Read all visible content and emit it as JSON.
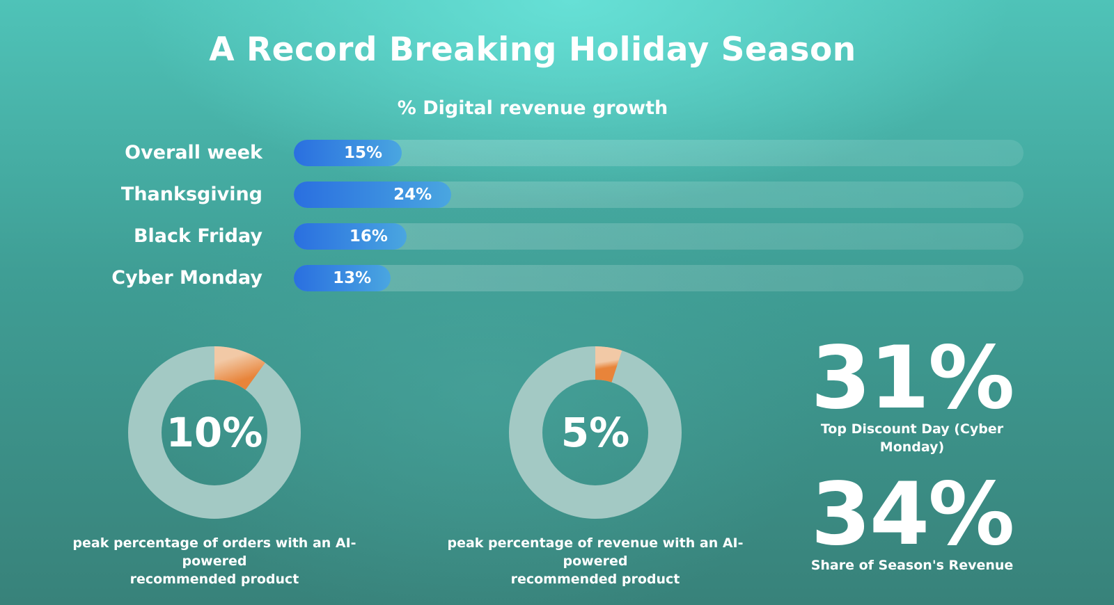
{
  "title": "A Record Breaking Holiday Season",
  "colors": {
    "bar_fill": "#2a6fe0",
    "donut_track": "#a3c9c4",
    "donut_highlight": "#e8843a",
    "text": "#ffffff"
  },
  "chart_data": [
    {
      "type": "bar",
      "orientation": "horizontal",
      "title": "% Digital revenue growth",
      "categories": [
        "Overall week",
        "Thanksgiving",
        "Black Friday",
        "Cyber Monday"
      ],
      "values": [
        15,
        24,
        16,
        13
      ],
      "value_labels": [
        "15%",
        "24%",
        "16%",
        "13%"
      ],
      "xlim": [
        0,
        100
      ],
      "grid": false
    },
    {
      "type": "pie",
      "style": "donut",
      "value": 10,
      "value_label": "10%",
      "caption_lines": [
        "peak percentage of orders with an AI-powered",
        "recommended product"
      ]
    },
    {
      "type": "pie",
      "style": "donut",
      "value": 5,
      "value_label": "5%",
      "caption_lines": [
        "peak percentage of revenue with an AI-powered",
        "recommended product"
      ]
    }
  ],
  "stats": [
    {
      "value": "31%",
      "caption_lines": [
        "Top Discount Day (Cyber",
        "Monday)"
      ]
    },
    {
      "value": "34%",
      "caption_lines": [
        "Share of Season's Revenue"
      ]
    }
  ]
}
